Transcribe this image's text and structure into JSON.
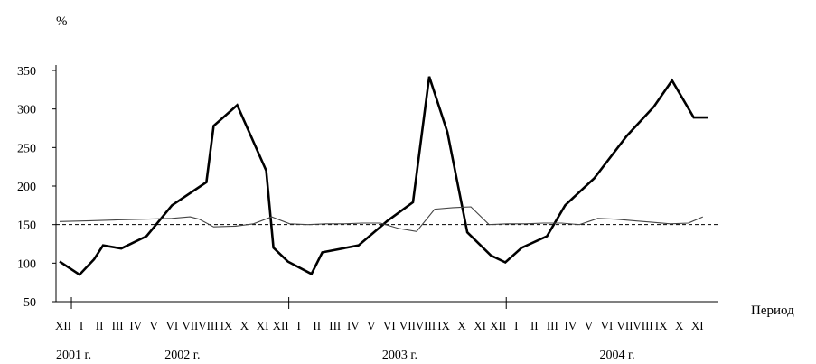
{
  "chart_data": {
    "type": "line",
    "ylabel": "%",
    "xlabel": "Период",
    "ylim": [
      50,
      350
    ],
    "yticks": [
      50,
      100,
      150,
      200,
      250,
      300,
      350
    ],
    "month_labels": [
      "XII",
      "I",
      "II",
      "III",
      "IV",
      "V",
      "VI",
      "VII",
      "VIII",
      "IX",
      "X",
      "XI",
      "XII",
      "I",
      "II",
      "III",
      "IV",
      "V",
      "VI",
      "VII",
      "VIII",
      "IX",
      "X",
      "XI",
      "XII",
      "I",
      "II",
      "III",
      "IV",
      "V",
      "VI",
      "VII",
      "VIII",
      "IX",
      "X",
      "XI"
    ],
    "year_labels": [
      {
        "text": "2001 г.",
        "month_index": 0
      },
      {
        "text": "2002 г.",
        "month_index": 6
      },
      {
        "text": "2003 г.",
        "month_index": 18
      },
      {
        "text": "2004 г.",
        "month_index": 30
      }
    ],
    "year_boundaries": [
      1,
      13,
      25
    ],
    "reference_line": {
      "value": 150,
      "style": "dashed"
    },
    "series": [
      {
        "style": "thick",
        "color": "#000000",
        "x": [
          -0.2,
          0.9,
          1.7,
          2.2,
          3.2,
          4.6,
          6.0,
          7.9,
          8.3,
          9.6,
          11.2,
          11.6,
          12.4,
          13.7,
          14.3,
          16.3,
          17.9,
          19.3,
          20.2,
          21.2,
          22.3,
          23.6,
          24.4,
          25.3,
          26.7,
          27.7,
          29.3,
          31.1,
          32.6,
          33.6,
          34.8,
          35.6
        ],
        "y": [
          102,
          85,
          105,
          123,
          119,
          135,
          175,
          205,
          278,
          305,
          220,
          120,
          102,
          86,
          114,
          123,
          155,
          179,
          342,
          270,
          140,
          110,
          101,
          120,
          135,
          175,
          210,
          265,
          303,
          337,
          289,
          289
        ]
      },
      {
        "style": "thin",
        "color": "#444444",
        "x": [
          -0.2,
          1.5,
          3.0,
          4.5,
          6.0,
          7.0,
          7.5,
          8.3,
          9.5,
          10.5,
          11.5,
          12.5,
          13.5,
          14.5,
          15.5,
          16.5,
          17.5,
          18.5,
          19.5,
          20.5,
          21.5,
          22.5,
          23.5,
          24.5,
          25.5,
          26.5,
          27.5,
          28.5,
          29.5,
          30.5,
          31.5,
          32.5,
          33.5,
          34.5,
          35.3
        ],
        "y": [
          154,
          155,
          156,
          157,
          158,
          160,
          157,
          147,
          148,
          151,
          160,
          151,
          150,
          151,
          151,
          152,
          152,
          145,
          141,
          170,
          172,
          173,
          150,
          151,
          151,
          152,
          152,
          150,
          158,
          157,
          155,
          153,
          151,
          152,
          160
        ]
      }
    ]
  }
}
